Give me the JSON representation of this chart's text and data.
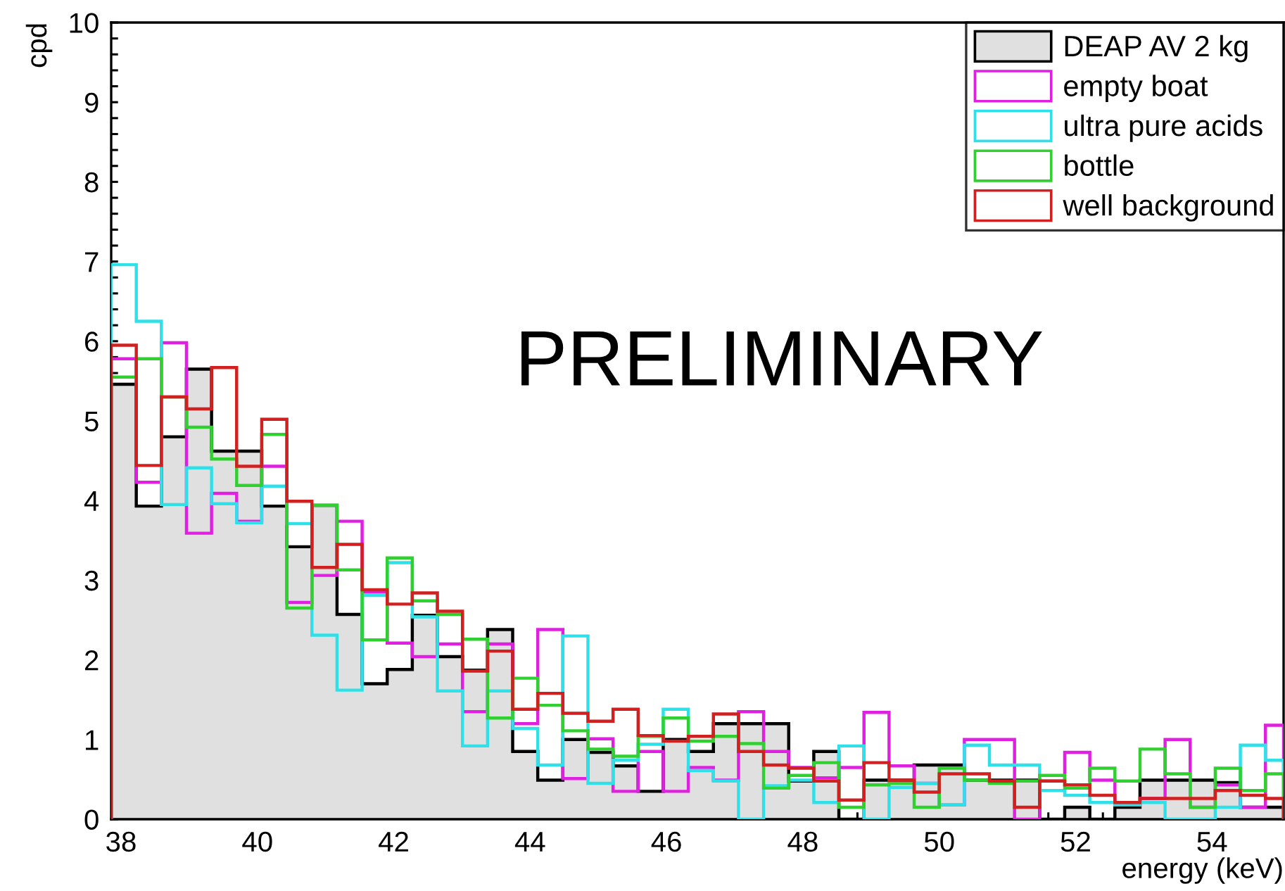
{
  "chart_data": {
    "type": "histogram",
    "xlabel": "energy (keV)",
    "ylabel": "cpd",
    "annotations": [
      "PRELIMINARY"
    ],
    "bins": [
      37.856,
      38.224,
      38.592,
      38.96,
      39.328,
      39.696,
      40.064,
      40.432,
      40.8,
      41.168,
      41.536,
      41.904,
      42.272,
      42.64,
      43.008,
      43.376,
      43.744,
      44.112,
      44.48,
      44.848,
      45.216,
      45.584,
      45.952,
      46.32,
      46.688,
      47.056,
      47.424,
      47.792,
      48.16,
      48.528,
      48.896,
      49.264,
      49.632,
      50.0,
      50.368,
      50.736,
      51.104,
      51.472,
      51.84,
      52.208,
      52.576,
      52.944,
      53.312,
      53.68,
      54.048,
      54.416,
      54.784,
      55.05
    ],
    "series": [
      {
        "name": "DEAP AV 2 kg",
        "color": "#e0e0e0",
        "values": [
          5.46,
          3.93,
          4.8,
          5.65,
          4.62,
          4.62,
          3.93,
          3.42,
          3.94,
          2.57,
          1.7,
          1.88,
          2.56,
          2.04,
          1.87,
          2.38,
          0.85,
          0.49,
          1.0,
          0.84,
          0.67,
          0.35,
          1.0,
          0.85,
          1.2,
          1.2,
          1.2,
          0.48,
          0.85,
          0,
          0.49,
          0.49,
          0.68,
          0.68,
          0.49,
          0.49,
          0.49,
          0,
          0.15,
          0,
          0.15,
          0.49,
          0.49,
          0.49,
          0.46,
          0.15,
          0.15
        ]
      },
      {
        "name": "empty boat",
        "color": "#e020e0",
        "values": [
          5.78,
          4.23,
          5.98,
          3.59,
          4.09,
          3.74,
          4.43,
          2.72,
          3.06,
          3.74,
          2.85,
          2.21,
          2.04,
          2.2,
          1.35,
          2.2,
          1.2,
          2.38,
          0.51,
          1.01,
          0.35,
          0.85,
          0.35,
          0.65,
          0.49,
          1.35,
          0.85,
          0.65,
          0.52,
          0.65,
          1.34,
          0.67,
          0.45,
          0.18,
          1.0,
          1.0,
          0,
          0.48,
          0.84,
          0.49,
          0.18,
          0.26,
          1.0,
          0.15,
          0.43,
          0.15,
          1.18
        ]
      },
      {
        "name": "ultra pure acids",
        "color": "#30e0e8",
        "values": [
          6.96,
          6.25,
          3.95,
          4.41,
          3.96,
          3.72,
          4.18,
          3.71,
          2.31,
          1.62,
          2.81,
          3.22,
          2.54,
          1.61,
          0.92,
          1.61,
          1.14,
          0.68,
          2.3,
          0.45,
          0.74,
          0.94,
          1.38,
          0.61,
          0.48,
          0,
          0.42,
          0.49,
          0.21,
          0.92,
          0,
          0.4,
          0.45,
          0.18,
          0.93,
          0.68,
          0.68,
          0.36,
          0.3,
          0.21,
          0.18,
          0.21,
          0,
          0,
          0.15,
          0.93,
          0.74
        ]
      },
      {
        "name": "bottle",
        "color": "#30d030",
        "values": [
          5.55,
          5.78,
          5.3,
          4.92,
          4.52,
          4.19,
          4.83,
          2.65,
          3.94,
          3.13,
          2.25,
          3.28,
          2.74,
          2.57,
          2.26,
          1.27,
          1.77,
          1.43,
          1.11,
          0.88,
          0.79,
          1.04,
          1.27,
          0.98,
          1.04,
          0.95,
          0.39,
          0.55,
          0.71,
          0.15,
          0.43,
          0.45,
          0.15,
          0.64,
          0.49,
          0.45,
          0.48,
          0.55,
          0.39,
          0.64,
          0.48,
          0.88,
          0.57,
          0.15,
          0.64,
          0.36,
          0.57
        ]
      },
      {
        "name": "well background",
        "color": "#d02020",
        "values": [
          5.95,
          4.44,
          5.3,
          5.15,
          5.67,
          4.43,
          5.02,
          3.99,
          3.16,
          3.45,
          2.88,
          2.7,
          2.84,
          2.61,
          1.86,
          2.11,
          1.38,
          1.58,
          1.33,
          1.23,
          1.38,
          1.05,
          0.98,
          1.04,
          1.32,
          0.85,
          0.68,
          0.64,
          0.48,
          0.24,
          0.71,
          0.49,
          0.34,
          0.57,
          0.57,
          0.48,
          0.15,
          0.48,
          0.43,
          0.3,
          0.21,
          0.26,
          0.26,
          0.26,
          0.36,
          0.3,
          0.26
        ]
      }
    ],
    "xlim": [
      37.856,
      55.05
    ],
    "ylim": [
      0,
      10
    ],
    "xticks": [
      38,
      {
        "value": 38.4,
        "label": null
      },
      {
        "value": 38.8,
        "label": null
      },
      {
        "value": 39.2,
        "label": null
      },
      {
        "value": 39.6,
        "label": null
      },
      40,
      {
        "value": 40.4,
        "label": null
      },
      {
        "value": 40.8,
        "label": null
      },
      {
        "value": 41.2,
        "label": null
      },
      {
        "value": 41.6,
        "label": null
      },
      42,
      {
        "value": 42.4,
        "label": null
      },
      {
        "value": 42.8,
        "label": null
      },
      {
        "value": 43.2,
        "label": null
      },
      {
        "value": 43.6,
        "label": null
      },
      44,
      {
        "value": 44.4,
        "label": null
      },
      {
        "value": 44.8,
        "label": null
      },
      {
        "value": 45.2,
        "label": null
      },
      {
        "value": 45.6,
        "label": null
      },
      46,
      {
        "value": 46.4,
        "label": null
      },
      {
        "value": 46.8,
        "label": null
      },
      {
        "value": 47.2,
        "label": null
      },
      {
        "value": 47.6,
        "label": null
      },
      48,
      {
        "value": 48.4,
        "label": null
      },
      {
        "value": 48.8,
        "label": null
      },
      {
        "value": 49.2,
        "label": null
      },
      {
        "value": 49.6,
        "label": null
      },
      50,
      {
        "value": 50.4,
        "label": null
      },
      {
        "value": 50.8,
        "label": null
      },
      {
        "value": 51.2,
        "label": null
      },
      {
        "value": 51.6,
        "label": null
      },
      52,
      {
        "value": 52.4,
        "label": null
      },
      {
        "value": 52.8,
        "label": null
      },
      {
        "value": 53.2,
        "label": null
      },
      {
        "value": 53.6,
        "label": null
      },
      54,
      {
        "value": 54.4,
        "label": null
      },
      {
        "value": 54.8,
        "label": null
      }
    ],
    "yticks": [
      0,
      {
        "value": 0.2,
        "label": null
      },
      {
        "value": 0.4,
        "label": null
      },
      {
        "value": 0.6,
        "label": null
      },
      {
        "value": 0.8,
        "label": null
      },
      1,
      {
        "value": 1.2,
        "label": null
      },
      {
        "value": 1.4,
        "label": null
      },
      {
        "value": 1.6,
        "label": null
      },
      {
        "value": 1.8,
        "label": null
      },
      2,
      {
        "value": 2.2,
        "label": null
      },
      {
        "value": 2.4,
        "label": null
      },
      {
        "value": 2.6,
        "label": null
      },
      {
        "value": 2.8,
        "label": null
      },
      3,
      {
        "value": 3.2,
        "label": null
      },
      {
        "value": 3.4,
        "label": null
      },
      {
        "value": 3.6,
        "label": null
      },
      {
        "value": 3.8,
        "label": null
      },
      4,
      {
        "value": 4.2,
        "label": null
      },
      {
        "value": 4.4,
        "label": null
      },
      {
        "value": 4.6,
        "label": null
      },
      {
        "value": 4.8,
        "label": null
      },
      5,
      {
        "value": 5.2,
        "label": null
      },
      {
        "value": 5.4,
        "label": null
      },
      {
        "value": 5.6,
        "label": null
      },
      {
        "value": 5.8,
        "label": null
      },
      6,
      {
        "value": 6.2,
        "label": null
      },
      {
        "value": 6.4,
        "label": null
      },
      {
        "value": 6.6,
        "label": null
      },
      {
        "value": 6.8,
        "label": null
      },
      7,
      {
        "value": 7.2,
        "label": null
      },
      {
        "value": 7.4,
        "label": null
      },
      {
        "value": 7.6,
        "label": null
      },
      {
        "value": 7.8,
        "label": null
      },
      8,
      {
        "value": 8.2,
        "label": null
      },
      {
        "value": 8.4,
        "label": null
      },
      {
        "value": 8.6,
        "label": null
      },
      {
        "value": 8.8,
        "label": null
      },
      9,
      {
        "value": 9.2,
        "label": null
      },
      {
        "value": 9.4,
        "label": null
      },
      {
        "value": 9.6,
        "label": null
      },
      {
        "value": 9.8,
        "label": null
      },
      10
    ],
    "grid": false,
    "legend": "top right"
  }
}
